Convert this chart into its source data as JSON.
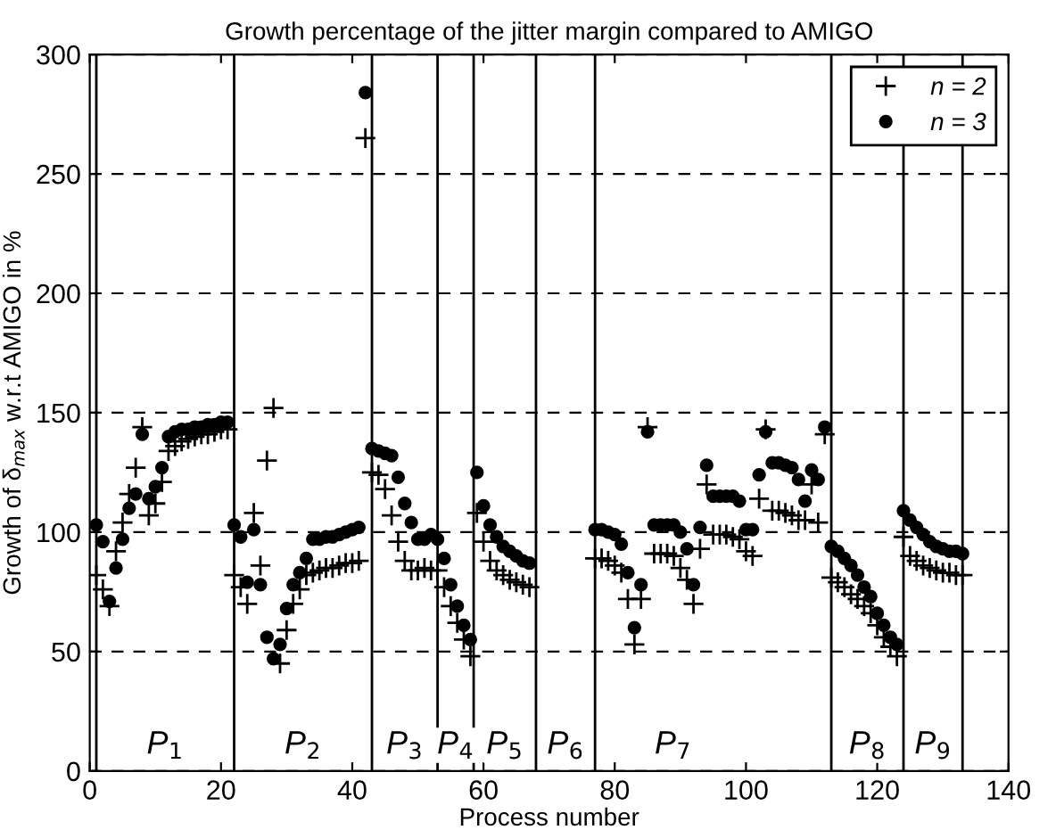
{
  "chart_data": {
    "type": "scatter",
    "title": "Growth percentage of the jitter margin compared to AMIGO",
    "xlabel": "Process number",
    "ylabel": "Growth of δ$_{max}$ w.r.t AMIGO in %",
    "x": [
      1,
      2,
      3,
      4,
      5,
      6,
      7,
      8,
      9,
      10,
      11,
      12,
      13,
      14,
      15,
      16,
      17,
      18,
      19,
      20,
      21,
      22,
      23,
      24,
      25,
      26,
      27,
      28,
      29,
      30,
      31,
      32,
      33,
      34,
      35,
      36,
      37,
      38,
      39,
      40,
      41,
      42,
      43,
      44,
      45,
      46,
      47,
      48,
      49,
      50,
      51,
      52,
      53,
      54,
      55,
      56,
      57,
      58,
      59,
      60,
      61,
      62,
      63,
      64,
      65,
      66,
      67,
      68,
      69,
      70,
      71,
      72,
      73,
      74,
      75,
      76,
      77,
      78,
      79,
      80,
      81,
      82,
      83,
      84,
      85,
      86,
      87,
      88,
      89,
      90,
      91,
      92,
      93,
      94,
      95,
      96,
      97,
      98,
      99,
      100,
      101,
      102,
      103,
      104,
      105,
      106,
      107,
      108,
      109,
      110,
      111,
      112,
      113,
      114,
      115,
      116,
      117,
      118,
      119,
      120,
      121,
      122,
      123,
      124,
      125,
      126,
      127,
      128,
      129,
      130,
      131,
      132,
      133
    ],
    "series": [
      {
        "name": "n = 2",
        "color": "#000000",
        "marker": "cross",
        "values": [
          82,
          76,
          69,
          92,
          104,
          116,
          127,
          144,
          107,
          112,
          121,
          134,
          136,
          138,
          139,
          140,
          141,
          141,
          142,
          143,
          143,
          82,
          77,
          70,
          108,
          86,
          130,
          152,
          45,
          59,
          70,
          76,
          82,
          83,
          84,
          85,
          85,
          86,
          87,
          87,
          88,
          265,
          125,
          124,
          118,
          107,
          96,
          88,
          84,
          84,
          85,
          84,
          84,
          77,
          69,
          62,
          55,
          48,
          108,
          96,
          88,
          84,
          82,
          80,
          79,
          78,
          77,
          null,
          null,
          null,
          null,
          null,
          null,
          null,
          null,
          null,
          89,
          89,
          88,
          86,
          83,
          72,
          53,
          72,
          144,
          91,
          91,
          91,
          90,
          85,
          80,
          70,
          93,
          120,
          99,
          99,
          99,
          98,
          97,
          92,
          90,
          114,
          143,
          109,
          109,
          108,
          107,
          105,
          105,
          120,
          104,
          141,
          81,
          79,
          77,
          74,
          72,
          69,
          66,
          61,
          56,
          52,
          48,
          98,
          90,
          88,
          86,
          85,
          84,
          83,
          83,
          82,
          82
        ]
      },
      {
        "name": "n = 3",
        "color": "#000000",
        "marker": "circle",
        "values": [
          103,
          96,
          71,
          85,
          97,
          110,
          116,
          141,
          114,
          119,
          127,
          140,
          142,
          143,
          143,
          144,
          144,
          145,
          145,
          146,
          146,
          103,
          98,
          79,
          101,
          78,
          56,
          47,
          53,
          68,
          78,
          83,
          89,
          97,
          97,
          98,
          98,
          99,
          100,
          101,
          102,
          284,
          135,
          134,
          133,
          132,
          123,
          112,
          104,
          97,
          97,
          99,
          97,
          89,
          78,
          69,
          61,
          55,
          125,
          111,
          103,
          98,
          94,
          92,
          90,
          88,
          87,
          null,
          null,
          null,
          null,
          null,
          null,
          null,
          null,
          null,
          101,
          101,
          100,
          99,
          95,
          83,
          60,
          78,
          142,
          103,
          103,
          103,
          103,
          100,
          93,
          78,
          102,
          128,
          115,
          115,
          115,
          115,
          113,
          101,
          101,
          124,
          142,
          129,
          129,
          128,
          127,
          122,
          113,
          126,
          122,
          144,
          94,
          92,
          89,
          86,
          82,
          77,
          73,
          66,
          61,
          56,
          53,
          109,
          105,
          102,
          99,
          96,
          94,
          93,
          92,
          92,
          91
        ]
      }
    ],
    "xlim": [
      0,
      140
    ],
    "xticks": [
      0,
      20,
      40,
      60,
      80,
      100,
      120,
      140
    ],
    "ylim": [
      0,
      300
    ],
    "yticks": [
      0,
      50,
      100,
      150,
      200,
      250,
      300
    ],
    "grid": "y",
    "legend": "top right",
    "ref_lines": [
      {
        "axis": "x",
        "value": 1,
        "color": "#000000",
        "label": "P$_{1}$"
      },
      {
        "axis": "x",
        "value": 22,
        "color": "#000000",
        "label": "P$_{2}$"
      },
      {
        "axis": "x",
        "value": 43,
        "color": "#000000",
        "label": "P$_{3}$"
      },
      {
        "axis": "x",
        "value": 53,
        "color": "#000000",
        "label": "P$_{4}$"
      },
      {
        "axis": "x",
        "value": 58.5,
        "color": "#000000",
        "label": "P$_{5}$"
      },
      {
        "axis": "x",
        "value": 68,
        "color": "#000000",
        "label": "P$_{6}$"
      },
      {
        "axis": "x",
        "value": 77,
        "color": "#000000",
        "label": "P$_{7}$"
      },
      {
        "axis": "x",
        "value": 113,
        "color": "#000000",
        "label": "P$_{8}$"
      },
      {
        "axis": "x",
        "value": 124,
        "color": "#000000",
        "label": "P$_{9}$"
      },
      {
        "axis": "x",
        "value": 133,
        "color": "#000000"
      }
    ]
  }
}
